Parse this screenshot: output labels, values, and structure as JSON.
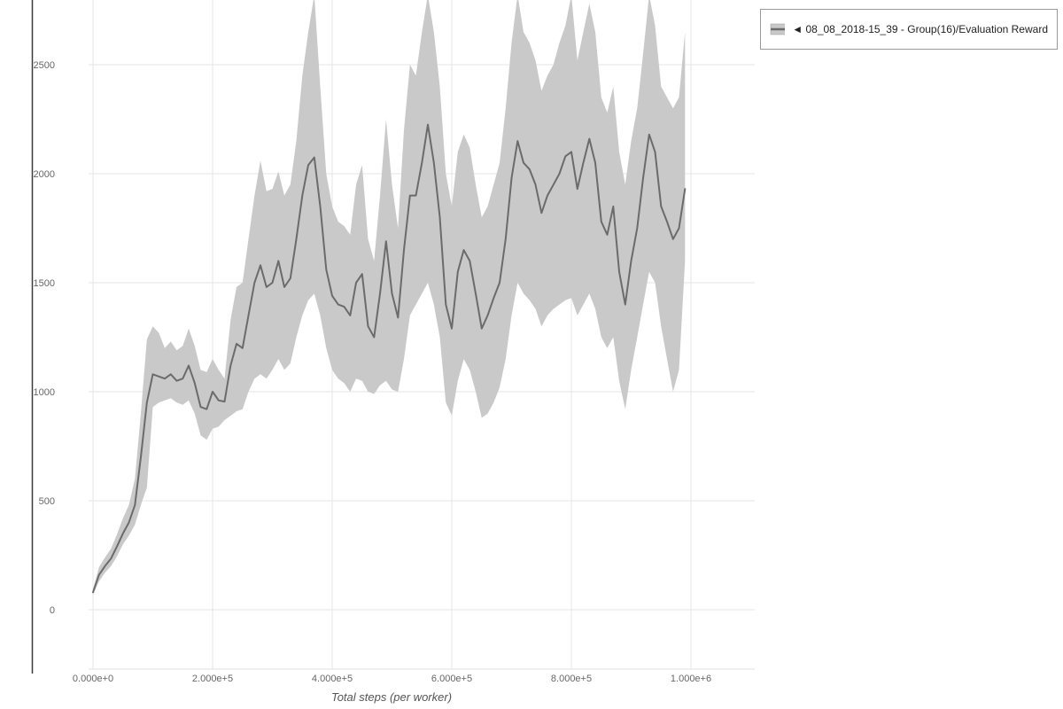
{
  "axes": {
    "x_title": "Total steps (per worker)"
  },
  "legend": {
    "marker": "band-line-swatch",
    "label": "◄ 08_08_2018-15_39 - Group(16)/Evaluation Reward"
  },
  "chart_data": {
    "type": "line",
    "title": "",
    "xlabel": "Total steps (per worker)",
    "ylabel": "",
    "grid": true,
    "legend_position": "top-right-outside",
    "x_ticks": [
      "0.000e+0",
      "2.000e+5",
      "4.000e+5",
      "6.000e+5",
      "8.000e+5",
      "1.000e+6"
    ],
    "x_tick_values": [
      0,
      200000,
      400000,
      600000,
      800000,
      1000000
    ],
    "y_ticks": [
      "0",
      "500",
      "1000",
      "1500",
      "2000",
      "2500"
    ],
    "y_tick_values": [
      0,
      500,
      1000,
      1500,
      2000,
      2500
    ],
    "xlim": [
      -60000,
      1110000
    ],
    "ylim": [
      -270,
      2800
    ],
    "series": [
      {
        "name": "08_08_2018-15_39 - Group(16)/Evaluation Reward",
        "line_color": "#6b6b6b",
        "band_color": "#c9c9c9",
        "x": [
          0,
          10000,
          20000,
          30000,
          40000,
          50000,
          60000,
          70000,
          80000,
          90000,
          100000,
          110000,
          120000,
          130000,
          140000,
          150000,
          160000,
          170000,
          180000,
          190000,
          200000,
          210000,
          220000,
          230000,
          240000,
          250000,
          260000,
          270000,
          280000,
          290000,
          300000,
          310000,
          320000,
          330000,
          340000,
          350000,
          360000,
          370000,
          380000,
          390000,
          400000,
          410000,
          420000,
          430000,
          440000,
          450000,
          460000,
          470000,
          480000,
          490000,
          500000,
          510000,
          520000,
          530000,
          540000,
          550000,
          560000,
          570000,
          580000,
          590000,
          600000,
          610000,
          620000,
          630000,
          640000,
          650000,
          660000,
          670000,
          680000,
          690000,
          700000,
          710000,
          720000,
          730000,
          740000,
          750000,
          760000,
          770000,
          780000,
          790000,
          800000,
          810000,
          820000,
          830000,
          840000,
          850000,
          860000,
          870000,
          880000,
          890000,
          900000,
          910000,
          920000,
          930000,
          940000,
          950000,
          960000,
          970000,
          980000,
          990000
        ],
        "mean": [
          80,
          160,
          200,
          235,
          290,
          350,
          400,
          480,
          700,
          950,
          1080,
          1070,
          1060,
          1080,
          1050,
          1060,
          1120,
          1040,
          930,
          920,
          1000,
          960,
          955,
          1120,
          1220,
          1200,
          1350,
          1500,
          1580,
          1480,
          1500,
          1600,
          1480,
          1520,
          1700,
          1900,
          2040,
          2075,
          1850,
          1560,
          1440,
          1400,
          1390,
          1350,
          1500,
          1540,
          1300,
          1250,
          1450,
          1690,
          1450,
          1340,
          1650,
          1900,
          1900,
          2050,
          2225,
          2050,
          1800,
          1400,
          1290,
          1550,
          1650,
          1600,
          1450,
          1290,
          1350,
          1430,
          1500,
          1700,
          1980,
          2150,
          2050,
          2020,
          1950,
          1820,
          1900,
          1950,
          2000,
          2080,
          2100,
          1930,
          2050,
          2160,
          2050,
          1780,
          1720,
          1850,
          1550,
          1400,
          1600,
          1750,
          1980,
          2180,
          2100,
          1850,
          1780,
          1700,
          1750,
          1930
        ],
        "lower": [
          70,
          130,
          170,
          200,
          245,
          300,
          340,
          390,
          480,
          560,
          930,
          950,
          960,
          970,
          950,
          940,
          960,
          900,
          800,
          780,
          830,
          840,
          870,
          890,
          910,
          920,
          1000,
          1060,
          1080,
          1060,
          1100,
          1150,
          1100,
          1130,
          1250,
          1350,
          1420,
          1450,
          1350,
          1200,
          1100,
          1060,
          1040,
          1000,
          1060,
          1050,
          1000,
          990,
          1030,
          1050,
          1010,
          1000,
          1150,
          1350,
          1400,
          1450,
          1500,
          1400,
          1250,
          950,
          890,
          1050,
          1150,
          1100,
          1000,
          880,
          900,
          950,
          1020,
          1150,
          1350,
          1500,
          1450,
          1420,
          1380,
          1300,
          1350,
          1380,
          1400,
          1420,
          1430,
          1350,
          1400,
          1450,
          1380,
          1250,
          1200,
          1250,
          1050,
          920,
          1100,
          1250,
          1400,
          1550,
          1500,
          1300,
          1150,
          1000,
          1100,
          1600
        ],
        "upper": [
          95,
          195,
          240,
          280,
          345,
          420,
          480,
          600,
          900,
          1240,
          1300,
          1270,
          1200,
          1230,
          1190,
          1210,
          1290,
          1210,
          1100,
          1090,
          1150,
          1100,
          1060,
          1330,
          1480,
          1500,
          1700,
          1900,
          2060,
          1920,
          1930,
          2010,
          1900,
          1950,
          2150,
          2450,
          2650,
          2820,
          2400,
          2000,
          1850,
          1780,
          1760,
          1720,
          1950,
          2040,
          1700,
          1600,
          1900,
          2250,
          1950,
          1750,
          2200,
          2500,
          2450,
          2650,
          2820,
          2650,
          2400,
          2000,
          1850,
          2100,
          2180,
          2120,
          1950,
          1800,
          1850,
          1950,
          2050,
          2300,
          2600,
          2820,
          2650,
          2600,
          2520,
          2380,
          2450,
          2500,
          2600,
          2680,
          2820,
          2520,
          2650,
          2780,
          2650,
          2350,
          2280,
          2400,
          2100,
          1950,
          2150,
          2300,
          2550,
          2820,
          2680,
          2400,
          2350,
          2300,
          2350,
          2650
        ]
      }
    ]
  }
}
